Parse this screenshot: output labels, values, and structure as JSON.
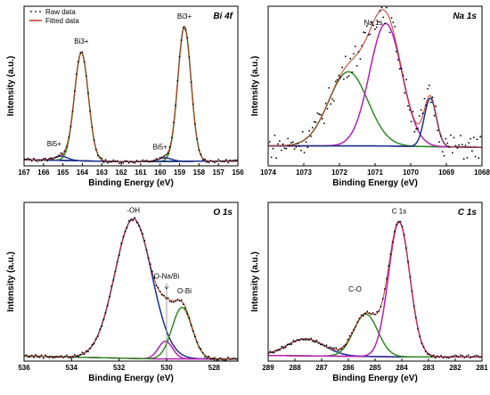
{
  "chart_data": [
    {
      "type": "line",
      "id": "bi4f",
      "title": "Bi 4f",
      "xlabel": "Binding Energy (eV)",
      "ylabel": "Intensity (a.u.)",
      "xlim": [
        167,
        156
      ],
      "x_reversed": true,
      "xticks": [
        167,
        166,
        165,
        164,
        163,
        162,
        161,
        160,
        159,
        158,
        157,
        156
      ],
      "ylim": [
        0,
        115
      ],
      "legend": {
        "placement": "top-left",
        "entries": [
          {
            "name": "Raw data",
            "style": "dots",
            "color": "#000000"
          },
          {
            "name": "Fitted data",
            "style": "line",
            "color": "#c0392b"
          }
        ]
      },
      "annotations": [
        {
          "text": "Bi3+",
          "x": 164.05,
          "y": 88
        },
        {
          "text": "Bi3+",
          "x": 158.75,
          "y": 106
        },
        {
          "text": "Bi5+",
          "x": 165.45,
          "y": 14
        },
        {
          "text": "Bi5+",
          "x": 160.0,
          "y": 12
        }
      ],
      "baseline": {
        "color": "#1f2f8f",
        "x": [
          167,
          162,
          156
        ],
        "y": [
          4.5,
          3.0,
          3.5
        ]
      },
      "components": [
        {
          "name": "Bi3+",
          "color": "#2e8b22",
          "center": 164.05,
          "amp": 78,
          "sigma": 0.36
        },
        {
          "name": "Bi3+",
          "color": "#2e8b22",
          "center": 158.75,
          "amp": 97,
          "sigma": 0.34
        },
        {
          "name": "Bi5+",
          "color": "#1f2f8f",
          "center": 165.1,
          "amp": 3,
          "sigma": 0.35
        },
        {
          "name": "Bi5+",
          "color": "#1f2f8f",
          "center": 159.75,
          "amp": 2.5,
          "sigma": 0.35
        }
      ],
      "fit_color": "#c0392b"
    },
    {
      "type": "line",
      "id": "na1s",
      "title": "Na 1s",
      "xlabel": "Binding Energy (eV)",
      "ylabel": "Intensity (a.u.)",
      "xlim": [
        1074,
        1068
      ],
      "x_reversed": true,
      "xticks": [
        1074,
        1073,
        1072,
        1071,
        1070,
        1069,
        1068
      ],
      "ylim": [
        0,
        112
      ],
      "annotations": [
        {
          "text": "Na 1s",
          "x": 1071.05,
          "y": 99
        }
      ],
      "baseline": {
        "color": "#1f2f8f",
        "x": [
          1074,
          1071,
          1068
        ],
        "y": [
          14,
          14,
          13
        ]
      },
      "components": [
        {
          "name": "",
          "color": "#2e8b22",
          "center": 1071.75,
          "amp": 52,
          "sigma": 0.55
        },
        {
          "name": "Na 1s",
          "color": "#b31fb3",
          "center": 1070.7,
          "amp": 86,
          "sigma": 0.45
        },
        {
          "name": "",
          "color": "#1f2f8f",
          "center": 1069.45,
          "amp": 34,
          "sigma": 0.17
        }
      ],
      "fit_color": "#c0392b"
    },
    {
      "type": "line",
      "id": "o1s",
      "title": "O 1s",
      "xlabel": "Binding Energy (eV)",
      "ylabel": "Intensity (a.u.)",
      "xlim": [
        536,
        527
      ],
      "x_reversed": true,
      "xticks": [
        536,
        534,
        532,
        530,
        528
      ],
      "ylim": [
        0,
        108
      ],
      "annotations": [
        {
          "text": "-OH",
          "x": 531.4,
          "y": 101
        },
        {
          "text": "O-Na/Bi",
          "x": 530.0,
          "y": 56
        },
        {
          "text": "O-Bi",
          "x": 529.25,
          "y": 46
        }
      ],
      "baseline": {
        "color": "#b31fb3",
        "x": [
          536,
          530.5,
          527
        ],
        "y": [
          3.5,
          1.5,
          1.5
        ]
      },
      "components": [
        {
          "name": "-OH",
          "color": "#1f2f8f",
          "center": 531.4,
          "amp": 95,
          "sigma": 0.78
        },
        {
          "name": "O-Na/Bi",
          "color": "#b31fb3",
          "center": 530.05,
          "amp": 12,
          "sigma": 0.3
        },
        {
          "name": "O-Bi",
          "color": "#2e8b22",
          "center": 529.35,
          "amp": 35,
          "sigma": 0.42
        }
      ],
      "fit_color": "#c0392b"
    },
    {
      "type": "line",
      "id": "c1s",
      "title": "C 1s",
      "xlabel": "Binding Energy (eV)",
      "ylabel": "Intensity (a.u.)",
      "xlim": [
        289,
        281
      ],
      "x_reversed": true,
      "xticks": [
        289,
        288,
        287,
        286,
        285,
        284,
        283,
        282,
        281
      ],
      "ylim": [
        0,
        112
      ],
      "annotations": [
        {
          "text": "C 1s",
          "x": 284.1,
          "y": 104
        },
        {
          "text": "C-O",
          "x": 285.75,
          "y": 49
        }
      ],
      "baseline": {
        "color": "#b31fb3",
        "x": [
          289,
          284,
          281
        ],
        "y": [
          4,
          3,
          3
        ]
      },
      "components": [
        {
          "name": "",
          "color": "#1f2f8f",
          "center": 287.6,
          "amp": 12,
          "sigma": 0.7
        },
        {
          "name": "C-O",
          "color": "#2e8b22",
          "center": 285.35,
          "amp": 30,
          "sigma": 0.45
        },
        {
          "name": "C 1s",
          "color": "#b31fb3",
          "center": 284.1,
          "amp": 95,
          "sigma": 0.4
        }
      ],
      "fit_color": "#c0392b"
    }
  ]
}
